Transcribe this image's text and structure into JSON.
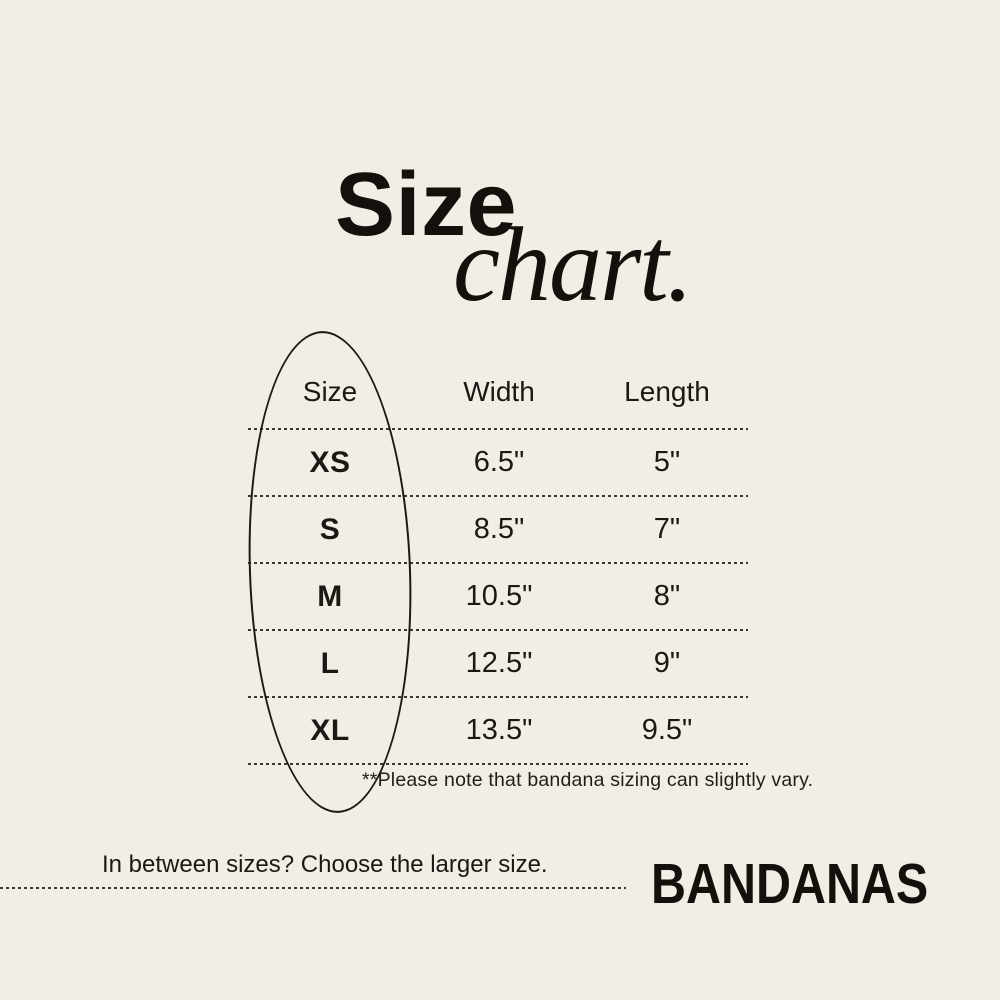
{
  "theme": {
    "background": "#f2eee5",
    "ink": "#14110d",
    "body_text": "#1b1815",
    "divider": "#3b3731"
  },
  "title": {
    "word": "Size",
    "script": "chart."
  },
  "table": {
    "headers": [
      "Size",
      "Width",
      "Length"
    ],
    "rows": [
      [
        "XS",
        "6.5\"",
        "5\""
      ],
      [
        "S",
        "8.5\"",
        "7\""
      ],
      [
        "M",
        "10.5\"",
        "8\""
      ],
      [
        "L",
        "12.5\"",
        "9\""
      ],
      [
        "XL",
        "13.5\"",
        "9.5\""
      ]
    ],
    "footnote": "**Please note that bandana sizing can slightly vary."
  },
  "footer": {
    "tip": "In between sizes? Choose the larger size.",
    "product": "BANDANAS"
  }
}
